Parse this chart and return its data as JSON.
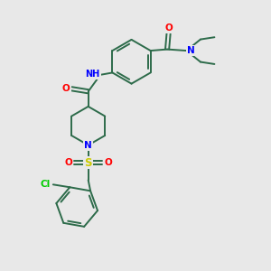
{
  "bg_color": "#e8e8e8",
  "bond_color": "#2d6b4a",
  "atom_colors": {
    "N": "#0000ff",
    "O": "#ff0000",
    "S": "#cccc00",
    "Cl": "#00cc00",
    "H": "#808080",
    "C": "#2d6b4a"
  }
}
